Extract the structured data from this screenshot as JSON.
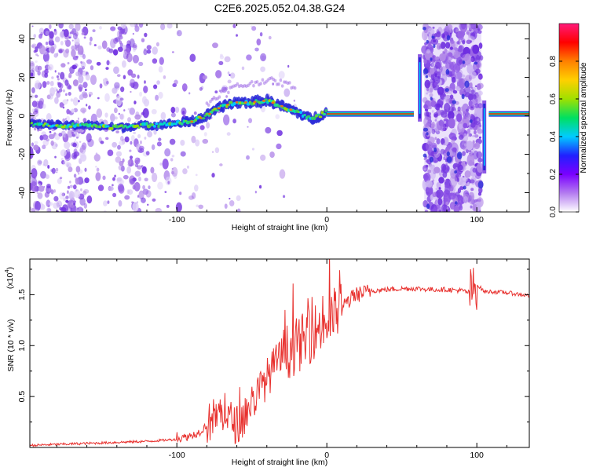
{
  "title": "C2E6.2025.052.04.38.G24",
  "colors": {
    "frame": "#000000",
    "snr_line": "#e8312e",
    "carrier": "#e6331c",
    "track_core": "#33cc66",
    "track_edge": "#2233dd",
    "scatter": "#7a3ee0"
  },
  "chart_data": [
    {
      "type": "heatmap",
      "title": "C2E6.2025.052.04.38.G24",
      "xlabel": "Height of straight line (km)",
      "ylabel": "Frequency (Hz)",
      "xlim": [
        -198,
        135
      ],
      "ylim": [
        -50,
        48
      ],
      "x_ticks": [
        -100,
        0,
        100
      ],
      "y_ticks": [
        -40,
        -20,
        0,
        20,
        40
      ],
      "colorbar": {
        "label": "Normalized spectral amplitude",
        "range": [
          0,
          1
        ],
        "ticks": [
          "0.0",
          "0.2",
          "0.4",
          "0.6",
          "0.8"
        ],
        "colormap": [
          "#ffffff",
          "#b47cf0",
          "#7a00ff",
          "#2020ff",
          "#00ccff",
          "#00e060",
          "#a0e000",
          "#ffd000",
          "#ff8000",
          "#ff0000",
          "#ff1a7a"
        ]
      },
      "frequency_track": {
        "x": [
          -198,
          -180,
          -160,
          -140,
          -120,
          -100,
          -90,
          -80,
          -70,
          -60,
          -50,
          -40,
          -30,
          -20,
          -15,
          -10,
          -5,
          0,
          10,
          30,
          50,
          58
        ],
        "y": [
          -4,
          -5,
          -5,
          -6,
          -5,
          -4,
          -3,
          0,
          5,
          7,
          7,
          8,
          5,
          2,
          0,
          -2,
          0,
          2,
          1,
          1,
          1,
          1
        ]
      },
      "carrier": {
        "x_start": 0,
        "x_end": 58,
        "freq": 1
      },
      "carrier_post": {
        "x_start": 108,
        "x_end": 135,
        "freq": 1
      },
      "noise_band": {
        "x_start": 65,
        "x_end": 103
      },
      "spikes": [
        {
          "x": 62,
          "ymin": -3,
          "ymax": 32
        },
        {
          "x": 105,
          "ymin": -30,
          "ymax": 8
        }
      ]
    },
    {
      "type": "line",
      "xlabel": "Height of straight line (km)",
      "ylabel": "SNR (10 * v/v)",
      "multiplier_label": "(x10",
      "multiplier_exp": "4",
      "xlim": [
        -198,
        135
      ],
      "ylim": [
        0,
        1.85
      ],
      "x_ticks": [
        -100,
        0,
        100
      ],
      "y_ticks": [
        0.5,
        1.0,
        1.5
      ],
      "y_tick_labels": [
        "0.5",
        "1.0",
        "1.5"
      ],
      "series": [
        {
          "x": [
            -198,
            -180,
            -160,
            -140,
            -120,
            -100,
            -95,
            -90,
            -85,
            -80,
            -75,
            -70,
            -65,
            -60,
            -55,
            -50,
            -45,
            -40,
            -35,
            -30,
            -25,
            -20,
            -15,
            -10,
            -5,
            0,
            5,
            10,
            15,
            20,
            30,
            40,
            50,
            60,
            70,
            80,
            90,
            95,
            98,
            100,
            105,
            110,
            120,
            135
          ],
          "y": [
            0.02,
            0.03,
            0.04,
            0.05,
            0.06,
            0.08,
            0.1,
            0.12,
            0.15,
            0.22,
            0.3,
            0.35,
            0.28,
            0.22,
            0.3,
            0.45,
            0.55,
            0.68,
            0.8,
            0.9,
            0.95,
            1.0,
            1.05,
            1.12,
            1.18,
            1.22,
            1.3,
            1.38,
            1.45,
            1.5,
            1.54,
            1.55,
            1.56,
            1.56,
            1.55,
            1.55,
            1.54,
            1.52,
            1.55,
            1.6,
            1.53,
            1.53,
            1.52,
            1.49
          ]
        }
      ]
    }
  ]
}
